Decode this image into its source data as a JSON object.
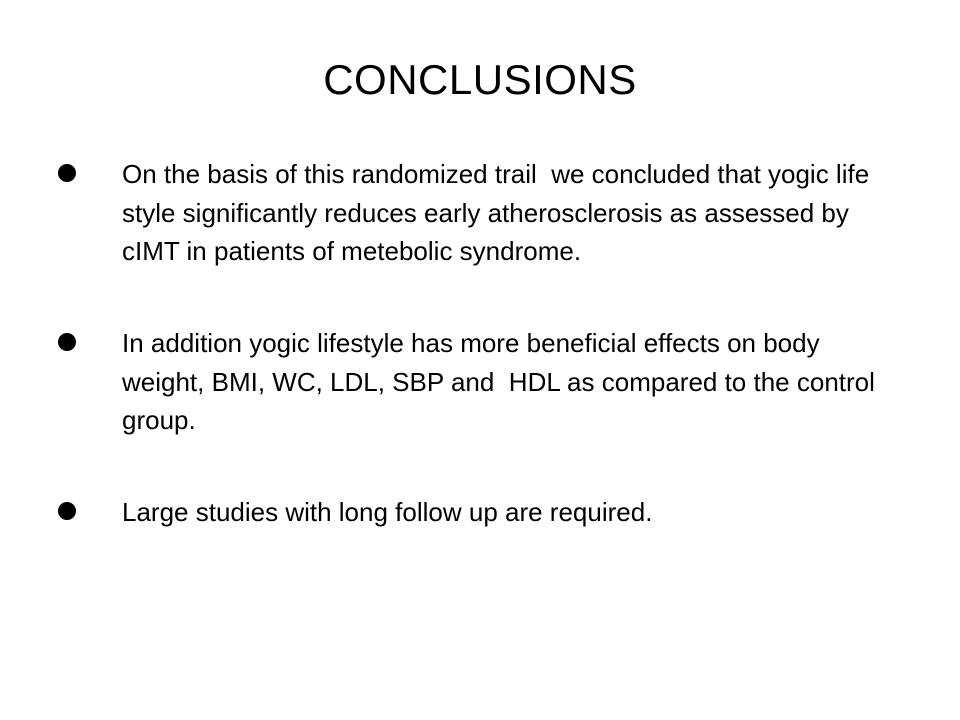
{
  "slide": {
    "title": "CONCLUSIONS",
    "bullets": [
      {
        "text": "On the basis of this randomized trail  we concluded that yogic life style significantly reduces early atherosclerosis as assessed by cIMT in patients of metebolic syndrome."
      },
      {
        "text": "In addition yogic lifestyle has more beneficial effects on body weight, BMI, WC, LDL, SBP and  HDL as compared to the control group."
      },
      {
        "text": "Large studies with long follow up are required."
      }
    ]
  }
}
